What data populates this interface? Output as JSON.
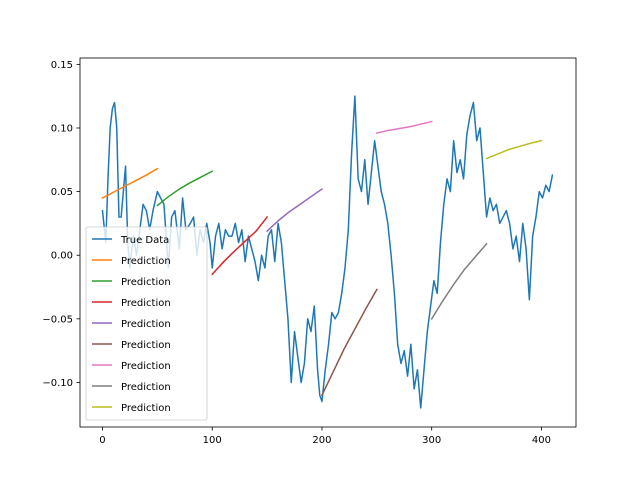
{
  "chart_data": {
    "type": "line",
    "title": "",
    "xlabel": "",
    "ylabel": "",
    "xlim": [
      -20.5,
      431.5
    ],
    "ylim": [
      -0.135,
      0.155
    ],
    "grid": false,
    "legend_placement": "lower-left",
    "xticks": [
      0,
      100,
      200,
      300,
      400
    ],
    "xtick_labels": [
      "0",
      "100",
      "200",
      "300",
      "400"
    ],
    "yticks": [
      0.15,
      0.1,
      0.05,
      0.0,
      -0.05,
      -0.1
    ],
    "ytick_labels": [
      "0.15",
      "0.10",
      "0.05",
      "0.00",
      "−0.05",
      "−0.10"
    ],
    "series": [
      {
        "name": "True Data",
        "color": "#1f77b4",
        "x": [
          0,
          3,
          5,
          7,
          9,
          11,
          13,
          15,
          17,
          19,
          21,
          23,
          25,
          28,
          31,
          34,
          37,
          40,
          43,
          46,
          50,
          53,
          56,
          60,
          63,
          66,
          70,
          73,
          76,
          80,
          83,
          86,
          89,
          92,
          95,
          98,
          100,
          103,
          106,
          109,
          112,
          115,
          118,
          121,
          124,
          127,
          130,
          133,
          136,
          139,
          142,
          145,
          148,
          151,
          154,
          157,
          160,
          163,
          166,
          169,
          172,
          175,
          178,
          181,
          184,
          187,
          190,
          193,
          196,
          198,
          200,
          203,
          206,
          209,
          212,
          215,
          218,
          221,
          224,
          227,
          230,
          233,
          236,
          239,
          242,
          245,
          248,
          251,
          254,
          257,
          260,
          263,
          266,
          269,
          272,
          275,
          278,
          281,
          284,
          287,
          290,
          293,
          296,
          299,
          302,
          305,
          308,
          311,
          314,
          317,
          320,
          323,
          326,
          329,
          332,
          335,
          338,
          341,
          344,
          347,
          350,
          353,
          356,
          359,
          362,
          365,
          368,
          371,
          374,
          377,
          380,
          383,
          386,
          389,
          392,
          395,
          398,
          401,
          404,
          407,
          410
        ],
        "y": [
          0.035,
          0.01,
          0.06,
          0.1,
          0.115,
          0.12,
          0.1,
          0.03,
          0.03,
          0.05,
          0.07,
          0.01,
          -0.01,
          0.015,
          0.0,
          0.02,
          0.04,
          0.035,
          0.02,
          0.035,
          0.05,
          0.045,
          0.04,
          -0.01,
          0.03,
          0.035,
          0.005,
          0.045,
          0.02,
          0.025,
          0.03,
          0.0,
          0.02,
          0.01,
          0.025,
          0.01,
          -0.01,
          0.015,
          0.025,
          0.005,
          0.02,
          0.015,
          0.015,
          0.025,
          0.01,
          0.02,
          -0.005,
          0.015,
          0.005,
          -0.005,
          -0.02,
          0.0,
          -0.01,
          0.015,
          0.02,
          -0.005,
          0.025,
          0.01,
          -0.02,
          -0.05,
          -0.1,
          -0.06,
          -0.08,
          -0.1,
          -0.085,
          -0.05,
          -0.06,
          -0.04,
          -0.09,
          -0.11,
          -0.115,
          -0.09,
          -0.07,
          -0.045,
          -0.05,
          -0.045,
          -0.03,
          -0.01,
          0.02,
          0.08,
          0.125,
          0.06,
          0.05,
          0.075,
          0.04,
          0.065,
          0.09,
          0.07,
          0.05,
          0.04,
          0.025,
          0.0,
          -0.03,
          -0.07,
          -0.085,
          -0.075,
          -0.095,
          -0.07,
          -0.105,
          -0.09,
          -0.12,
          -0.09,
          -0.06,
          -0.04,
          -0.02,
          -0.03,
          0.01,
          0.04,
          0.06,
          0.05,
          0.09,
          0.065,
          0.075,
          0.06,
          0.095,
          0.11,
          0.12,
          0.09,
          0.1,
          0.065,
          0.03,
          0.045,
          0.035,
          0.04,
          0.025,
          0.03,
          0.035,
          0.025,
          0.005,
          0.015,
          -0.005,
          0.025,
          0.005,
          -0.035,
          0.015,
          0.03,
          0.05,
          0.045,
          0.055,
          0.05,
          0.063
        ]
      },
      {
        "name": "Prediction",
        "color": "#ff7f0e",
        "x": [
          0,
          10,
          20,
          30,
          40,
          50
        ],
        "y": [
          0.045,
          0.0495,
          0.054,
          0.0585,
          0.063,
          0.068
        ]
      },
      {
        "name": "Prediction",
        "color": "#2ca02c",
        "x": [
          50,
          60,
          70,
          80,
          90,
          100
        ],
        "y": [
          0.039,
          0.046,
          0.052,
          0.057,
          0.0615,
          0.066
        ]
      },
      {
        "name": "Prediction",
        "color": "#d62728",
        "x": [
          100,
          110,
          120,
          130,
          140,
          150
        ],
        "y": [
          -0.015,
          -0.0055,
          0.003,
          0.011,
          0.019,
          0.03
        ]
      },
      {
        "name": "Prediction",
        "color": "#9467bd",
        "x": [
          150,
          160,
          170,
          180,
          190,
          200
        ],
        "y": [
          0.019,
          0.027,
          0.034,
          0.04,
          0.046,
          0.052
        ]
      },
      {
        "name": "Prediction",
        "color": "#8c564b",
        "x": [
          200,
          210,
          220,
          230,
          240,
          250
        ],
        "y": [
          -0.11,
          -0.092,
          -0.074,
          -0.058,
          -0.042,
          -0.027
        ]
      },
      {
        "name": "Prediction",
        "color": "#e377c2",
        "x": [
          250,
          260,
          270,
          280,
          290,
          300
        ],
        "y": [
          0.096,
          0.098,
          0.0995,
          0.101,
          0.103,
          0.105
        ]
      },
      {
        "name": "Prediction",
        "color": "#7f7f7f",
        "x": [
          300,
          310,
          320,
          330,
          340,
          350
        ],
        "y": [
          -0.05,
          -0.036,
          -0.023,
          -0.011,
          -0.001,
          0.009
        ]
      },
      {
        "name": "Prediction",
        "color": "#bcbd22",
        "x": [
          350,
          360,
          370,
          380,
          390,
          400
        ],
        "y": [
          0.076,
          0.0795,
          0.083,
          0.0855,
          0.088,
          0.09
        ]
      }
    ]
  }
}
